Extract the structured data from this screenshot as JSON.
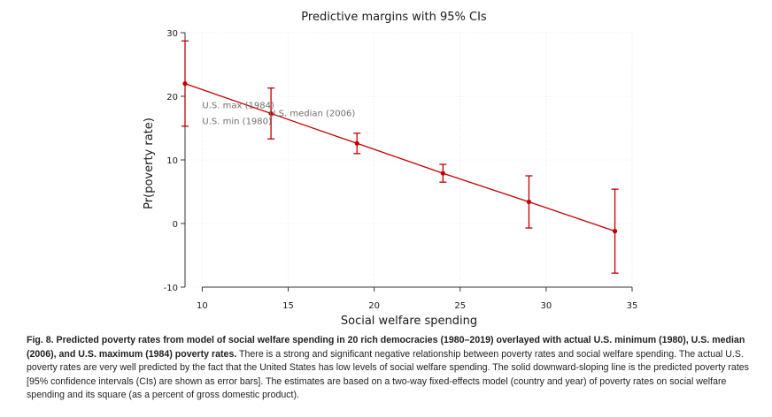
{
  "chart_data": {
    "type": "line",
    "title": "Predictive margins with 95% CIs",
    "xlabel": "Social welfare spending",
    "ylabel": "Pr(poverty rate)",
    "xlim": [
      9,
      35
    ],
    "ylim": [
      -10,
      30
    ],
    "xticks": [
      10,
      15,
      20,
      25,
      30,
      35
    ],
    "yticks": [
      -10,
      0,
      10,
      20,
      30
    ],
    "grid": true,
    "series": [
      {
        "name": "Predicted poverty rate",
        "color": "#c00000",
        "points": [
          {
            "x": 9,
            "y": 22.0,
            "lo": 15.3,
            "hi": 28.7
          },
          {
            "x": 14,
            "y": 17.3,
            "lo": 13.3,
            "hi": 21.3
          },
          {
            "x": 19,
            "y": 12.6,
            "lo": 11.0,
            "hi": 14.2
          },
          {
            "x": 24,
            "y": 7.9,
            "lo": 6.5,
            "hi": 9.3
          },
          {
            "x": 29,
            "y": 3.4,
            "lo": -0.7,
            "hi": 7.5
          },
          {
            "x": 34,
            "y": -1.2,
            "lo": -7.8,
            "hi": 5.4
          }
        ]
      }
    ],
    "annotations": [
      {
        "text": "U.S. max (1984)",
        "x": 10.0,
        "y": 18.1
      },
      {
        "text": "U.S. median (2006)",
        "x": 13.9,
        "y": 16.9
      },
      {
        "text": "U.S. min (1980)",
        "x": 10.0,
        "y": 15.6
      }
    ]
  },
  "caption": {
    "heading": "Fig. 8. Predicted poverty rates from model of social welfare spending in 20 rich democracies (1980–2019) overlayed with actual U.S. minimum (1980), U.S. median (2006), and U.S. maximum (1984) poverty rates.",
    "body": " There is a strong and significant negative relationship between poverty rates and social welfare spending. The actual U.S. poverty rates are very well predicted by the fact that the United States has low levels of social welfare spending. The solid downward-sloping line is the predicted poverty rates [95% confidence intervals (CIs) are shown as error bars]. The estimates are based on a two-way fixed-effects model (country and year) of poverty rates on social welfare spending and its square (as a percent of gross domestic product)."
  }
}
